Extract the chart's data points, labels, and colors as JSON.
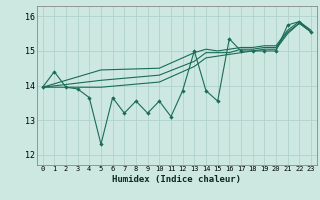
{
  "xlabel": "Humidex (Indice chaleur)",
  "bg_color": "#cce8e0",
  "line_color": "#1a6b58",
  "grid_color": "#aacfc7",
  "xlim": [
    -0.5,
    23.5
  ],
  "ylim": [
    11.7,
    16.3
  ],
  "yticks": [
    12,
    13,
    14,
    15,
    16
  ],
  "xticks": [
    0,
    1,
    2,
    3,
    4,
    5,
    6,
    7,
    8,
    9,
    10,
    11,
    12,
    13,
    14,
    15,
    16,
    17,
    18,
    19,
    20,
    21,
    22,
    23
  ],
  "series1": [
    [
      0,
      13.95
    ],
    [
      1,
      14.4
    ],
    [
      2,
      13.95
    ],
    [
      3,
      13.9
    ],
    [
      4,
      13.65
    ],
    [
      5,
      12.3
    ],
    [
      6,
      13.65
    ],
    [
      7,
      13.2
    ],
    [
      8,
      13.55
    ],
    [
      9,
      13.2
    ],
    [
      10,
      13.55
    ],
    [
      11,
      13.1
    ],
    [
      12,
      13.85
    ],
    [
      13,
      15.0
    ],
    [
      14,
      13.85
    ],
    [
      15,
      13.55
    ],
    [
      16,
      15.35
    ],
    [
      17,
      15.0
    ],
    [
      18,
      15.0
    ],
    [
      19,
      15.0
    ],
    [
      20,
      15.0
    ],
    [
      21,
      15.75
    ],
    [
      22,
      15.85
    ],
    [
      23,
      15.55
    ]
  ],
  "series2": [
    [
      0,
      13.95
    ],
    [
      5,
      13.95
    ],
    [
      10,
      14.1
    ],
    [
      13,
      14.55
    ],
    [
      14,
      14.8
    ],
    [
      15,
      14.85
    ],
    [
      16,
      14.9
    ],
    [
      17,
      14.95
    ],
    [
      18,
      15.0
    ],
    [
      19,
      15.05
    ],
    [
      20,
      15.05
    ],
    [
      21,
      15.5
    ],
    [
      22,
      15.8
    ],
    [
      23,
      15.55
    ]
  ],
  "series3": [
    [
      0,
      13.95
    ],
    [
      5,
      14.15
    ],
    [
      10,
      14.3
    ],
    [
      13,
      14.7
    ],
    [
      14,
      14.95
    ],
    [
      15,
      14.95
    ],
    [
      16,
      14.95
    ],
    [
      17,
      15.05
    ],
    [
      18,
      15.05
    ],
    [
      19,
      15.1
    ],
    [
      20,
      15.1
    ],
    [
      21,
      15.55
    ],
    [
      22,
      15.8
    ],
    [
      23,
      15.55
    ]
  ],
  "series4": [
    [
      0,
      13.95
    ],
    [
      5,
      14.45
    ],
    [
      10,
      14.5
    ],
    [
      13,
      14.95
    ],
    [
      14,
      15.05
    ],
    [
      15,
      15.0
    ],
    [
      16,
      15.05
    ],
    [
      17,
      15.1
    ],
    [
      18,
      15.1
    ],
    [
      19,
      15.15
    ],
    [
      20,
      15.15
    ],
    [
      21,
      15.6
    ],
    [
      22,
      15.85
    ],
    [
      23,
      15.6
    ]
  ]
}
